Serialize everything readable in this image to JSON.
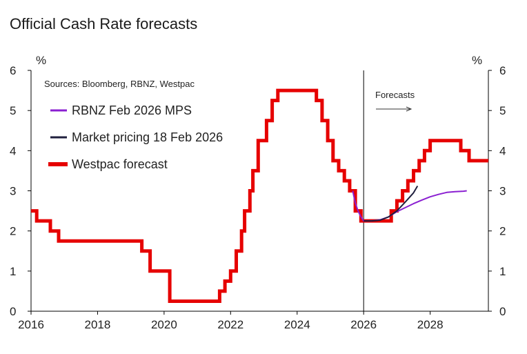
{
  "title": "Official Cash Rate forecasts",
  "chart_data": {
    "type": "line",
    "title": "Official Cash Rate forecasts",
    "source_note": "Sources: Bloomberg, RBNZ, Westpac",
    "forecast_label": "Forecasts",
    "forecast_start": 2026.0,
    "y_unit_left": "%",
    "y_unit_right": "%",
    "xlim": [
      2016,
      2029.75
    ],
    "ylim": [
      0,
      6
    ],
    "x_ticks": [
      2016,
      2018,
      2020,
      2022,
      2024,
      2026,
      2028
    ],
    "y_ticks": [
      0,
      1,
      2,
      3,
      4,
      5,
      6
    ],
    "grid": false,
    "legend_position": "top-left",
    "series": [
      {
        "name": "RBNZ Feb 2026 MPS",
        "color": "#8a1fd1",
        "x": [
          2025.67,
          2025.75,
          2025.83,
          2025.92,
          2026.0,
          2026.25,
          2026.5,
          2026.75,
          2027.0,
          2027.25,
          2027.5,
          2027.75,
          2028.0,
          2028.25,
          2028.5,
          2028.75,
          2029.0,
          2029.1
        ],
        "y": [
          3.0,
          2.7,
          2.5,
          2.35,
          2.25,
          2.25,
          2.28,
          2.35,
          2.48,
          2.58,
          2.68,
          2.77,
          2.85,
          2.91,
          2.96,
          2.98,
          2.99,
          3.0
        ]
      },
      {
        "name": "Market pricing 18 Feb 2026",
        "color": "#1f1f3d",
        "x": [
          2026.0,
          2026.25,
          2026.5,
          2026.75,
          2027.0,
          2027.25,
          2027.5,
          2027.62
        ],
        "y": [
          2.25,
          2.25,
          2.27,
          2.35,
          2.5,
          2.72,
          2.95,
          3.12
        ]
      },
      {
        "name": "Westpac forecast",
        "color": "#e60000",
        "x": [
          2016.0,
          2016.17,
          2016.58,
          2016.83,
          2019.33,
          2019.58,
          2020.17,
          2021.67,
          2021.83,
          2022.0,
          2022.17,
          2022.33,
          2022.42,
          2022.58,
          2022.67,
          2022.83,
          2023.08,
          2023.25,
          2023.42,
          2024.58,
          2024.75,
          2024.92,
          2025.08,
          2025.25,
          2025.42,
          2025.58,
          2025.75,
          2025.92,
          2026.83,
          2027.0,
          2027.17,
          2027.33,
          2027.5,
          2027.67,
          2027.83,
          2028.0,
          2028.17,
          2028.92,
          2029.17,
          2029.42,
          2029.75
        ],
        "y": [
          2.5,
          2.25,
          2.0,
          1.75,
          1.5,
          1.0,
          0.25,
          0.5,
          0.75,
          1.0,
          1.5,
          2.0,
          2.5,
          3.0,
          3.5,
          4.25,
          4.75,
          5.25,
          5.5,
          5.25,
          4.75,
          4.25,
          3.75,
          3.5,
          3.25,
          3.0,
          2.5,
          2.25,
          2.5,
          2.75,
          3.0,
          3.25,
          3.5,
          3.75,
          4.0,
          4.25,
          4.25,
          4.0,
          3.75,
          3.75,
          3.75
        ],
        "step": true
      }
    ]
  }
}
